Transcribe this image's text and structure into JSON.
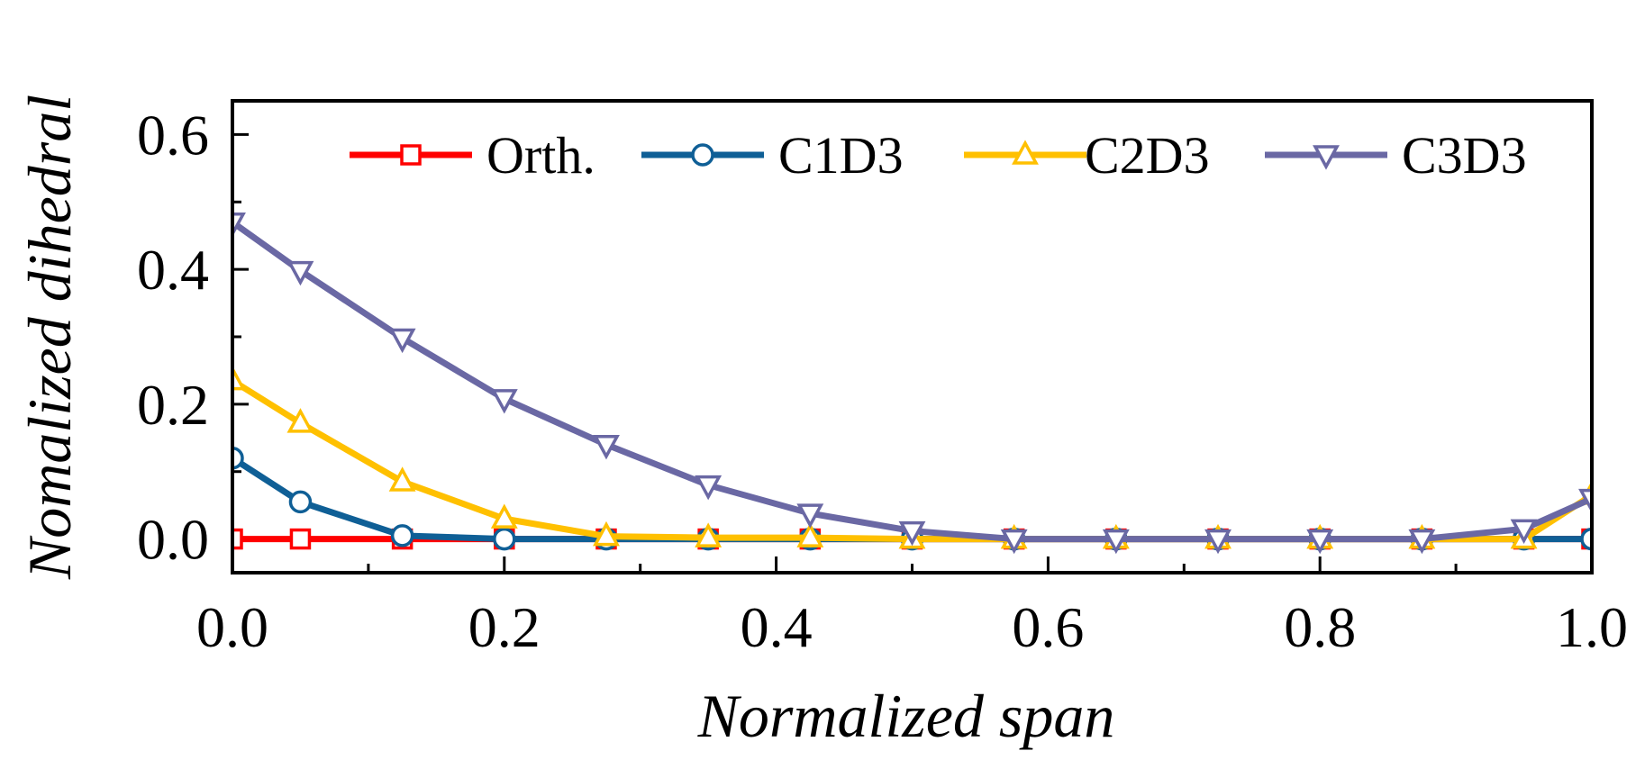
{
  "chart_data": {
    "type": "line",
    "title": "",
    "xlabel": "Normalized span",
    "ylabel": "Nomalized dihedral",
    "xlim": [
      0.0,
      1.0
    ],
    "ylim": [
      -0.05,
      0.65
    ],
    "xticks": [
      0.0,
      0.2,
      0.4,
      0.6,
      0.8,
      1.0
    ],
    "xtick_labels": [
      "0.0",
      "0.2",
      "0.4",
      "0.6",
      "0.8",
      "1.0"
    ],
    "xminor": [
      0.1,
      0.3,
      0.5,
      0.7,
      0.9
    ],
    "yticks": [
      0.0,
      0.2,
      0.4,
      0.6
    ],
    "ytick_labels": [
      "0.0",
      "0.2",
      "0.4",
      "0.6"
    ],
    "yminor": [
      0.1,
      0.3,
      0.5
    ],
    "grid": false,
    "legend_position": "top-right",
    "series": [
      {
        "name": "Orth.",
        "color": "#ff0000",
        "marker": "square",
        "x": [
          0.0,
          0.05,
          0.125,
          0.2,
          0.275,
          0.35,
          0.425,
          0.5,
          0.575,
          0.65,
          0.725,
          0.8,
          0.875,
          0.95,
          1.0
        ],
        "y": [
          0.0,
          0.0,
          0.0,
          0.0,
          0.0,
          0.0,
          0.0,
          0.0,
          0.0,
          0.0,
          0.0,
          0.0,
          0.0,
          0.0,
          0.0
        ]
      },
      {
        "name": "C1D3",
        "color": "#0f5f96",
        "marker": "circle",
        "x": [
          0.0,
          0.05,
          0.125,
          0.2,
          0.275,
          0.35,
          0.425,
          0.5,
          0.575,
          0.65,
          0.725,
          0.8,
          0.875,
          0.95,
          1.0
        ],
        "y": [
          0.12,
          0.055,
          0.005,
          0.0,
          0.0,
          0.0,
          0.0,
          0.0,
          0.0,
          0.0,
          0.0,
          0.0,
          0.0,
          0.0,
          0.0
        ]
      },
      {
        "name": "C2D3",
        "color": "#ffc000",
        "marker": "triangle-up",
        "x": [
          0.0,
          0.05,
          0.125,
          0.2,
          0.275,
          0.35,
          0.425,
          0.5,
          0.575,
          0.65,
          0.725,
          0.8,
          0.875,
          0.95,
          1.0
        ],
        "y": [
          0.235,
          0.172,
          0.085,
          0.03,
          0.004,
          0.002,
          0.002,
          0.0,
          0.0,
          0.0,
          0.0,
          0.0,
          0.0,
          0.0,
          0.065
        ]
      },
      {
        "name": "C3D3",
        "color": "#6a68a4",
        "marker": "triangle-down",
        "x": [
          0.0,
          0.05,
          0.125,
          0.2,
          0.275,
          0.35,
          0.425,
          0.5,
          0.575,
          0.65,
          0.725,
          0.8,
          0.875,
          0.95,
          1.0
        ],
        "y": [
          0.47,
          0.398,
          0.298,
          0.208,
          0.14,
          0.08,
          0.038,
          0.012,
          0.0,
          0.0,
          0.0,
          0.0,
          0.0,
          0.015,
          0.06
        ]
      }
    ]
  }
}
